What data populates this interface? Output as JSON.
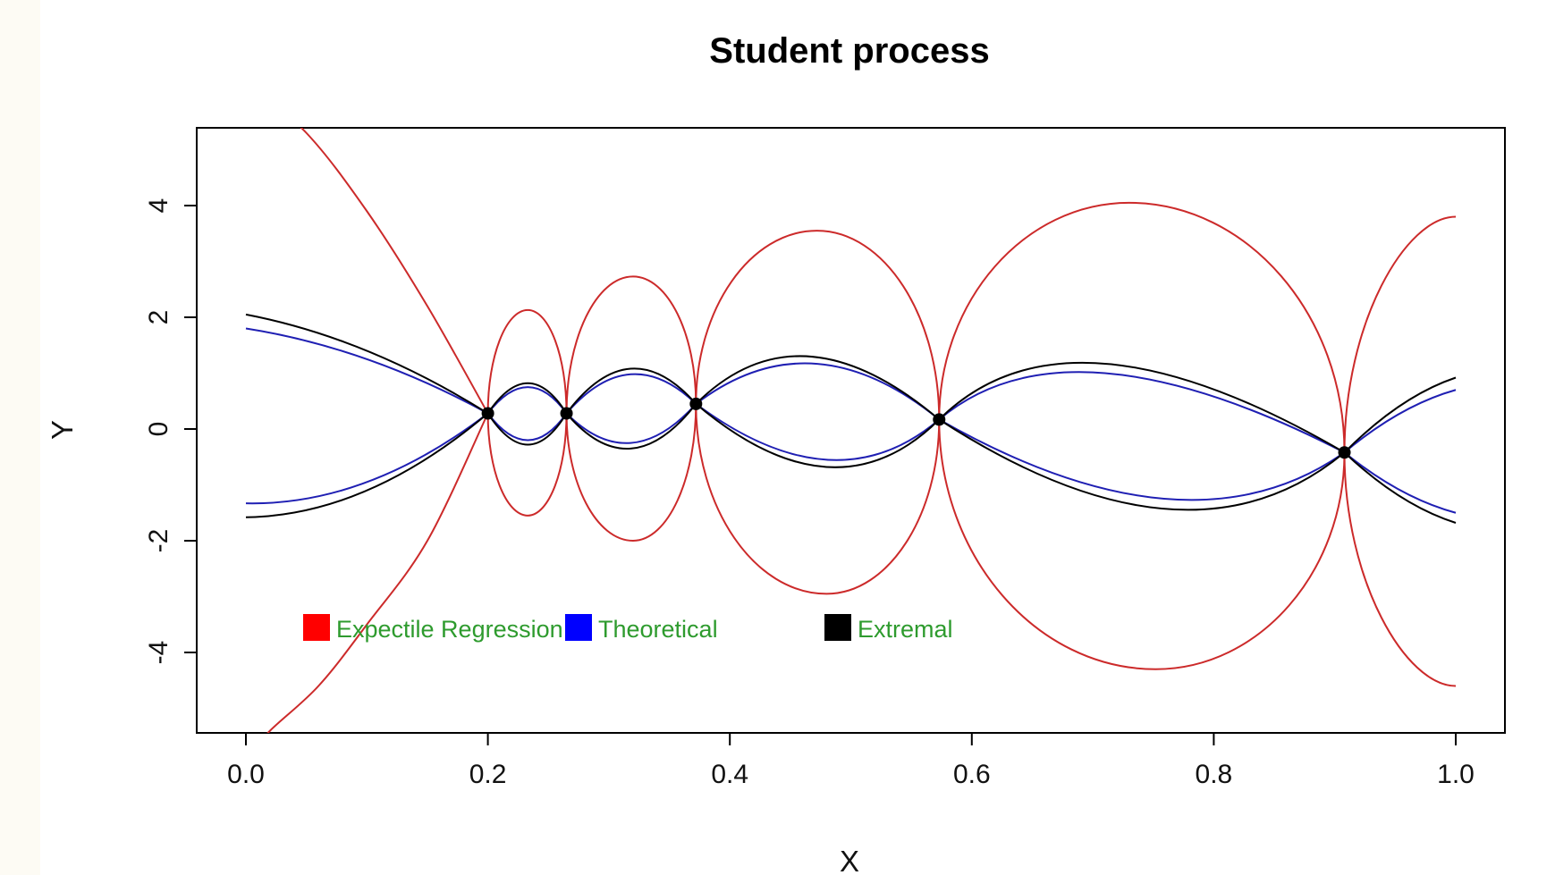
{
  "chart_data": {
    "type": "line",
    "title": "Student process",
    "xlabel": "X",
    "ylabel": "Y",
    "xlim": [
      0,
      1
    ],
    "ylim": [
      -5.4,
      5.4
    ],
    "x_ticks": [
      0.0,
      0.2,
      0.4,
      0.6,
      0.8,
      1.0
    ],
    "x_tick_labels": [
      "0.0",
      "0.2",
      "0.4",
      "0.6",
      "0.8",
      "1.0"
    ],
    "y_ticks": [
      -4,
      -2,
      0,
      2,
      4
    ],
    "y_tick_labels": [
      "-4",
      "-2",
      "0",
      "2",
      "4"
    ],
    "grid": false,
    "legend": {
      "placement": "bottom-left",
      "text_color": "#2e9b2e",
      "entries": [
        {
          "label": "Expectile Regression",
          "color": "#ff0000"
        },
        {
          "label": "Theoretical",
          "color": "#0000ff"
        },
        {
          "label": "Extremal",
          "color": "#000000"
        }
      ]
    },
    "colors": {
      "expectile": "#cc2a2a",
      "theoretical": "#1f1fb3",
      "extremal": "#000000"
    },
    "extremal_points": [
      {
        "x": 0.2,
        "y": 0.28
      },
      {
        "x": 0.265,
        "y": 0.28
      },
      {
        "x": 0.372,
        "y": 0.45
      },
      {
        "x": 0.573,
        "y": 0.17
      },
      {
        "x": 0.908,
        "y": -0.42
      }
    ],
    "series": [
      {
        "role": "expectile",
        "upper": true,
        "x": [
          0.0,
          0.05,
          0.1,
          0.15,
          0.2
        ],
        "y": [
          6.2,
          5.3,
          3.9,
          2.2,
          0.28
        ]
      },
      {
        "role": "expectile",
        "upper": false,
        "x": [
          0.0,
          0.02,
          0.06,
          0.1,
          0.15,
          0.2
        ],
        "y": [
          -5.9,
          -5.4,
          -4.6,
          -3.5,
          -2.0,
          0.28
        ]
      },
      {
        "role": "expectile",
        "upper": true,
        "x": [
          0.2,
          0.233,
          0.265
        ],
        "y": [
          0.28,
          2.13,
          0.28
        ]
      },
      {
        "role": "expectile",
        "upper": false,
        "x": [
          0.2,
          0.233,
          0.265
        ],
        "y": [
          0.28,
          -1.55,
          0.28
        ]
      },
      {
        "role": "expectile",
        "upper": true,
        "x": [
          0.265,
          0.32,
          0.372
        ],
        "y": [
          0.28,
          2.73,
          0.45
        ]
      },
      {
        "role": "expectile",
        "upper": false,
        "x": [
          0.265,
          0.32,
          0.372
        ],
        "y": [
          0.28,
          -2.0,
          0.45
        ]
      },
      {
        "role": "expectile",
        "upper": true,
        "x": [
          0.372,
          0.472,
          0.573
        ],
        "y": [
          0.45,
          3.55,
          0.17
        ]
      },
      {
        "role": "expectile",
        "upper": false,
        "x": [
          0.372,
          0.48,
          0.573
        ],
        "y": [
          0.45,
          -2.95,
          0.17
        ]
      },
      {
        "role": "expectile",
        "upper": true,
        "x": [
          0.573,
          0.73,
          0.908
        ],
        "y": [
          0.17,
          4.05,
          -0.42
        ]
      },
      {
        "role": "expectile",
        "upper": false,
        "x": [
          0.573,
          0.752,
          0.908
        ],
        "y": [
          0.17,
          -4.3,
          -0.42
        ]
      },
      {
        "role": "expectile",
        "upper": true,
        "x": [
          0.908,
          1.0
        ],
        "y": [
          -0.42,
          3.8
        ]
      },
      {
        "role": "expectile",
        "upper": false,
        "x": [
          0.908,
          1.0
        ],
        "y": [
          -0.42,
          -4.6
        ]
      },
      {
        "role": "theoretical",
        "x": [
          0.0,
          0.1,
          0.2
        ],
        "y": [
          1.8,
          1.25,
          0.28
        ]
      },
      {
        "role": "theoretical",
        "x": [
          0.0,
          0.1,
          0.2
        ],
        "y": [
          -1.33,
          -0.95,
          0.28
        ]
      },
      {
        "role": "theoretical",
        "x": [
          0.2,
          0.233,
          0.265
        ],
        "y": [
          0.28,
          0.75,
          0.28
        ]
      },
      {
        "role": "theoretical",
        "x": [
          0.2,
          0.233,
          0.265
        ],
        "y": [
          0.28,
          -0.2,
          0.28
        ]
      },
      {
        "role": "theoretical",
        "x": [
          0.265,
          0.318,
          0.372
        ],
        "y": [
          0.28,
          0.98,
          0.45
        ]
      },
      {
        "role": "theoretical",
        "x": [
          0.265,
          0.318,
          0.372
        ],
        "y": [
          0.28,
          -0.25,
          0.45
        ]
      },
      {
        "role": "theoretical",
        "x": [
          0.372,
          0.47,
          0.573
        ],
        "y": [
          0.45,
          1.17,
          0.17
        ]
      },
      {
        "role": "theoretical",
        "x": [
          0.372,
          0.48,
          0.573
        ],
        "y": [
          0.45,
          -0.55,
          0.17
        ]
      },
      {
        "role": "theoretical",
        "x": [
          0.573,
          0.71,
          0.908
        ],
        "y": [
          0.17,
          1.0,
          -0.42
        ]
      },
      {
        "role": "theoretical",
        "x": [
          0.573,
          0.76,
          0.908
        ],
        "y": [
          0.17,
          -1.25,
          -0.42
        ]
      },
      {
        "role": "theoretical",
        "x": [
          0.908,
          1.0
        ],
        "y": [
          -0.42,
          0.7
        ]
      },
      {
        "role": "theoretical",
        "x": [
          0.908,
          1.0
        ],
        "y": [
          -0.42,
          -1.5
        ]
      },
      {
        "role": "extremal",
        "x": [
          0.0,
          0.1,
          0.2
        ],
        "y": [
          2.05,
          1.4,
          0.28
        ]
      },
      {
        "role": "extremal",
        "x": [
          0.0,
          0.1,
          0.2
        ],
        "y": [
          -1.58,
          -1.1,
          0.28
        ]
      },
      {
        "role": "extremal",
        "x": [
          0.2,
          0.233,
          0.265
        ],
        "y": [
          0.28,
          0.82,
          0.28
        ]
      },
      {
        "role": "extremal",
        "x": [
          0.2,
          0.233,
          0.265
        ],
        "y": [
          0.28,
          -0.28,
          0.28
        ]
      },
      {
        "role": "extremal",
        "x": [
          0.265,
          0.318,
          0.372
        ],
        "y": [
          0.28,
          1.08,
          0.45
        ]
      },
      {
        "role": "extremal",
        "x": [
          0.265,
          0.318,
          0.372
        ],
        "y": [
          0.28,
          -0.35,
          0.45
        ]
      },
      {
        "role": "extremal",
        "x": [
          0.372,
          0.465,
          0.573
        ],
        "y": [
          0.45,
          1.3,
          0.17
        ]
      },
      {
        "role": "extremal",
        "x": [
          0.372,
          0.48,
          0.573
        ],
        "y": [
          0.45,
          -0.68,
          0.17
        ]
      },
      {
        "role": "extremal",
        "x": [
          0.573,
          0.71,
          0.908
        ],
        "y": [
          0.17,
          1.17,
          -0.42
        ]
      },
      {
        "role": "extremal",
        "x": [
          0.573,
          0.76,
          0.908
        ],
        "y": [
          0.17,
          -1.43,
          -0.42
        ]
      },
      {
        "role": "extremal",
        "x": [
          0.908,
          1.0
        ],
        "y": [
          -0.42,
          0.92
        ]
      },
      {
        "role": "extremal",
        "x": [
          0.908,
          1.0
        ],
        "y": [
          -0.42,
          -1.68
        ]
      }
    ]
  }
}
